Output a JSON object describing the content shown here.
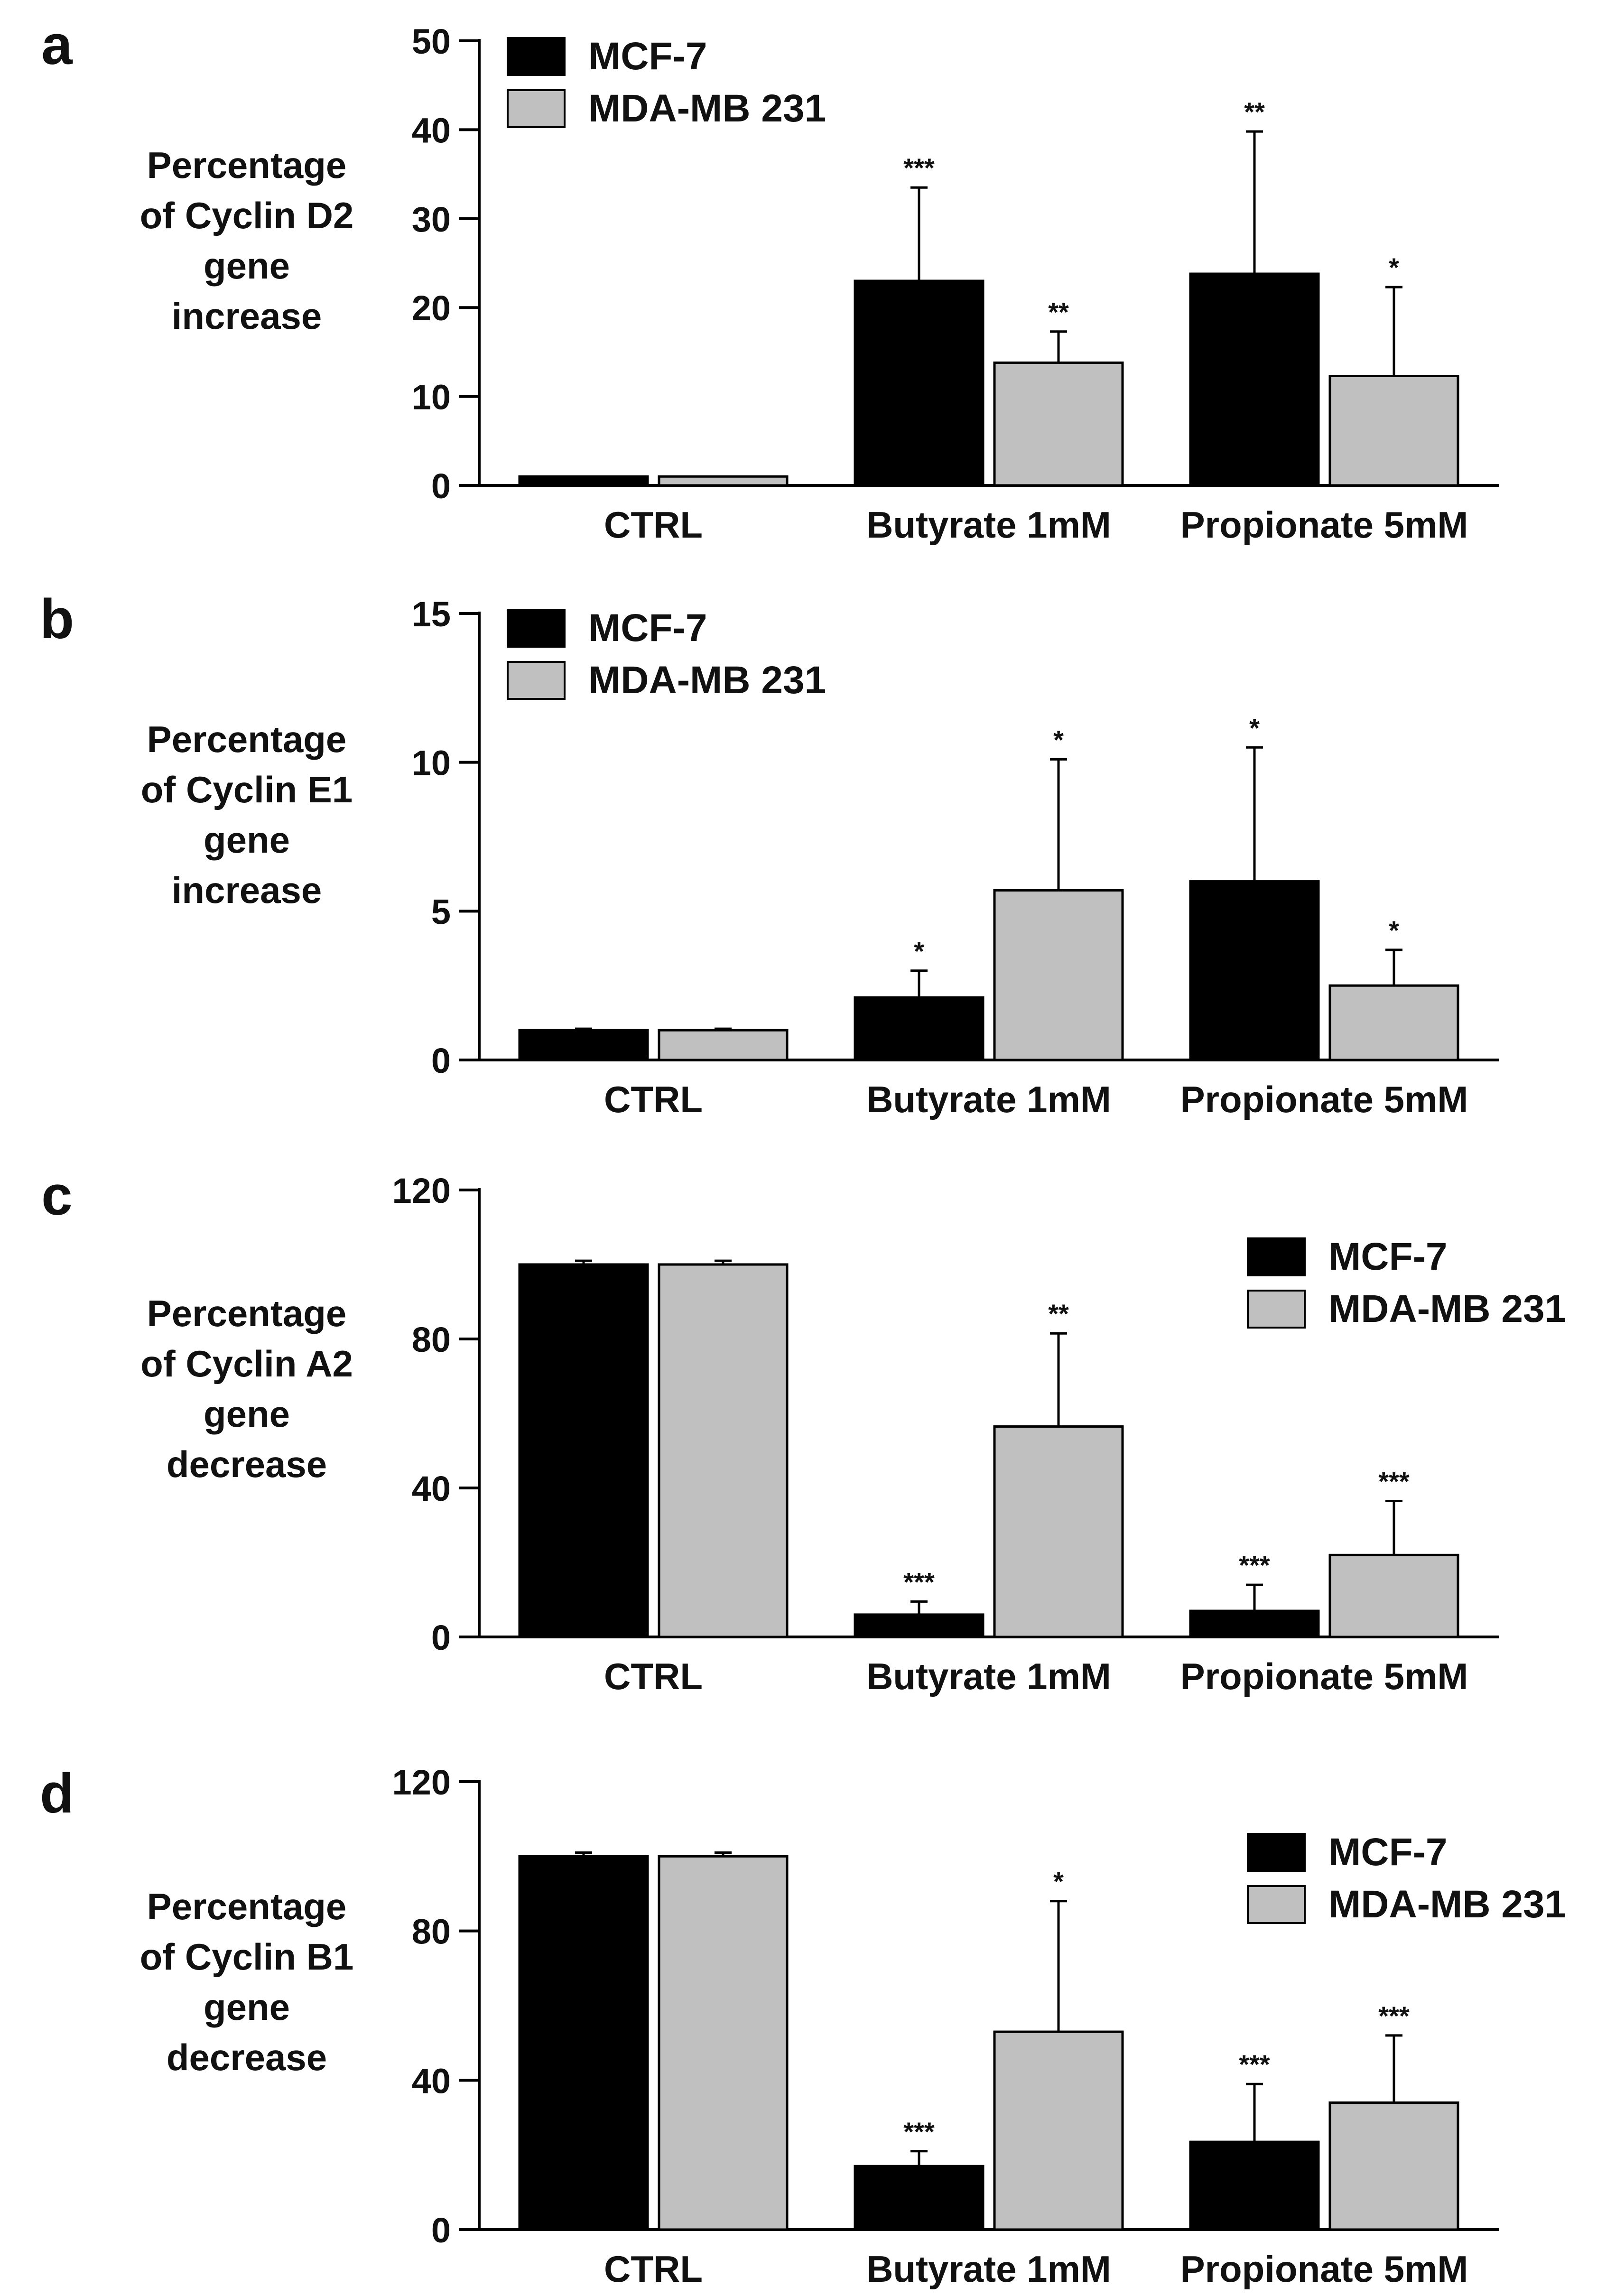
{
  "legend_labels": [
    "MCF-7",
    "MDA-MB 231"
  ],
  "colors": {
    "MCF-7": "#000000",
    "MDA-MB 231": "#c0c0c0",
    "axis": "#000000",
    "star": "#333333"
  },
  "chart_data": [
    {
      "panel": "a",
      "type": "bar",
      "title": "",
      "ylabel": "Percentage\nof Cyclin D2\ngene\nincrease",
      "xlabel": "",
      "categories": [
        "CTRL",
        "Butyrate 1mM",
        "Propionate 5mM"
      ],
      "ylim": [
        0,
        50
      ],
      "yticks": [
        0,
        10,
        20,
        30,
        40,
        50
      ],
      "legend": "top-left",
      "series": [
        {
          "name": "MCF-7",
          "values": [
            1,
            23,
            23.8
          ],
          "errors": [
            0,
            10.5,
            16
          ],
          "stars": [
            "",
            "***",
            "**"
          ]
        },
        {
          "name": "MDA-MB 231",
          "values": [
            1,
            13.8,
            12.3
          ],
          "errors": [
            0,
            3.5,
            10
          ],
          "stars": [
            "",
            "**",
            "*"
          ]
        }
      ]
    },
    {
      "panel": "b",
      "type": "bar",
      "title": "",
      "ylabel": "Percentage\nof Cyclin E1\ngene\nincrease",
      "xlabel": "",
      "categories": [
        "CTRL",
        "Butyrate 1mM",
        "Propionate 5mM"
      ],
      "ylim": [
        0,
        15
      ],
      "yticks": [
        0,
        5,
        10,
        15
      ],
      "legend": "top-left",
      "series": [
        {
          "name": "MCF-7",
          "values": [
            1,
            2.1,
            6
          ],
          "errors": [
            0.05,
            0.9,
            4.5
          ],
          "stars": [
            "",
            "*",
            "*"
          ]
        },
        {
          "name": "MDA-MB 231",
          "values": [
            1,
            5.7,
            2.5
          ],
          "errors": [
            0.05,
            4.4,
            1.2
          ],
          "stars": [
            "",
            "*",
            "*"
          ]
        }
      ]
    },
    {
      "panel": "c",
      "type": "bar",
      "title": "",
      "ylabel": "Percentage\nof Cyclin A2\ngene\ndecrease",
      "xlabel": "",
      "categories": [
        "CTRL",
        "Butyrate 1mM",
        "Propionate 5mM"
      ],
      "ylim": [
        0,
        120
      ],
      "yticks": [
        0,
        40,
        80,
        120
      ],
      "legend": "top-right",
      "series": [
        {
          "name": "MCF-7",
          "values": [
            100,
            6,
            7
          ],
          "errors": [
            1,
            3.5,
            7
          ],
          "stars": [
            "",
            "***",
            "***"
          ]
        },
        {
          "name": "MDA-MB 231",
          "values": [
            100,
            56.5,
            22
          ],
          "errors": [
            1,
            25,
            14.5
          ],
          "stars": [
            "",
            "**",
            "***"
          ]
        }
      ]
    },
    {
      "panel": "d",
      "type": "bar",
      "title": "",
      "ylabel": "Percentage\nof Cyclin B1\ngene\ndecrease",
      "xlabel": "",
      "categories": [
        "CTRL",
        "Butyrate 1mM",
        "Propionate 5mM"
      ],
      "ylim": [
        0,
        120
      ],
      "yticks": [
        0,
        40,
        80,
        120
      ],
      "legend": "top-right",
      "series": [
        {
          "name": "MCF-7",
          "values": [
            100,
            17,
            23.5
          ],
          "errors": [
            1,
            4,
            15.5
          ],
          "stars": [
            "",
            "***",
            "***"
          ]
        },
        {
          "name": "MDA-MB 231",
          "values": [
            100,
            53,
            34
          ],
          "errors": [
            1,
            35,
            18
          ],
          "stars": [
            "",
            "*",
            "***"
          ]
        }
      ]
    }
  ]
}
